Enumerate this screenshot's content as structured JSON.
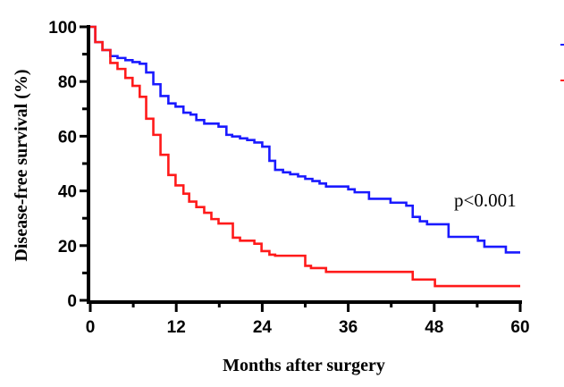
{
  "chart_data": {
    "type": "line",
    "step": true,
    "xlabel": "Months after surgery",
    "ylabel": "Disease-free survival (%)",
    "xlim": [
      0,
      60
    ],
    "ylim": [
      0,
      100
    ],
    "xticks": [
      "0",
      "12",
      "24",
      "36",
      "48",
      "60"
    ],
    "yticks": [
      "0",
      "20",
      "40",
      "60",
      "80",
      "100"
    ],
    "grid": false,
    "legend": "right (cut off)",
    "annotation": "p<0.001",
    "series": [
      {
        "color": "#1a1aff",
        "x": [
          0,
          0.7,
          1.7,
          2.8,
          3.8,
          4.9,
          5.9,
          6.9,
          7.8,
          8.8,
          9.8,
          10.9,
          11.9,
          13,
          14,
          14.8,
          15.9,
          17.9,
          19,
          19.8,
          20.9,
          21.9,
          22.9,
          24,
          25,
          25.8,
          26.9,
          27.9,
          29,
          30,
          31,
          32,
          32.9,
          36,
          36.9,
          38.9,
          41.9,
          44.1,
          45,
          46,
          47,
          50,
          54.1,
          55,
          58,
          60
        ],
        "y": [
          100,
          94.4,
          91.5,
          89.3,
          88.6,
          87.8,
          87.1,
          86.5,
          83.3,
          79,
          74.7,
          72,
          70.8,
          68.6,
          67.9,
          65.9,
          64.6,
          63.5,
          60.5,
          59.9,
          59.2,
          58.6,
          57.7,
          56.2,
          51,
          47.7,
          46.8,
          46.1,
          45.3,
          44.4,
          43.6,
          42.7,
          41.6,
          40.6,
          39.5,
          37.1,
          35.7,
          34.6,
          30.5,
          28.9,
          27.8,
          23.2,
          21.8,
          19.6,
          17.5,
          17.5
        ]
      },
      {
        "color": "#ff1a1a",
        "x": [
          0,
          0.7,
          1.7,
          2.8,
          3.8,
          4.9,
          5.9,
          6.9,
          7.8,
          8.8,
          9.8,
          10.9,
          11.9,
          13,
          13.8,
          14.8,
          15.9,
          16.9,
          17.9,
          19.9,
          20.9,
          22.9,
          23.9,
          25,
          25.8,
          30,
          30.8,
          32.9,
          45,
          48.1,
          60
        ],
        "y": [
          100,
          94.4,
          91.5,
          86.8,
          84.6,
          81.3,
          78.4,
          74.4,
          66.4,
          60.5,
          53.2,
          45.8,
          42,
          39,
          36.1,
          34.1,
          32,
          29.7,
          28.1,
          22.9,
          21.8,
          20.7,
          18,
          16.7,
          16.3,
          12.6,
          11.8,
          10.4,
          7.6,
          5.2,
          5.2
        ]
      }
    ]
  }
}
